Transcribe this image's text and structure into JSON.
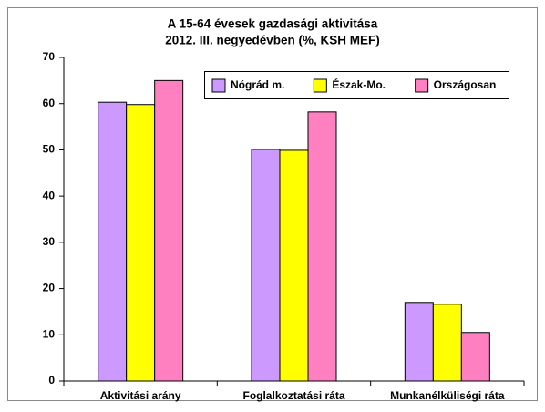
{
  "chart_data": {
    "type": "bar",
    "title": "A 15-64 évesek gazdasági aktivitása",
    "subtitle": "2012. III. negyedévben (%, KSH MEF)",
    "categories": [
      "Aktivitási arány",
      "Foglalkoztatási ráta",
      "Munkanélküliségi ráta"
    ],
    "series": [
      {
        "name": "Nógrád m.",
        "color": "#cc99ff",
        "values": [
          60.3,
          50.1,
          17.0
        ]
      },
      {
        "name": "Észak-Mo.",
        "color": "#ffff00",
        "values": [
          59.8,
          49.9,
          16.6
        ]
      },
      {
        "name": "Országosan",
        "color": "#ff80c0",
        "values": [
          65.0,
          58.2,
          10.5
        ]
      }
    ],
    "ylim": [
      0,
      70
    ],
    "yticks": [
      0,
      10,
      20,
      30,
      40,
      50,
      60,
      70
    ],
    "legend": "top-right"
  }
}
